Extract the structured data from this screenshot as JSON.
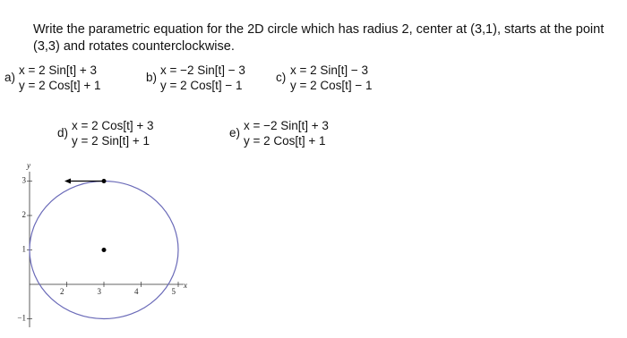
{
  "question": "Write the parametric equation for the 2D circle which has radius 2, center at (3,1), starts at the point (3,3) and rotates counterclockwise.",
  "options": [
    {
      "label": "a)",
      "x": "x = 2 Sin[t] + 3",
      "y": "y = 2 Cos[t] + 1"
    },
    {
      "label": "b)",
      "x": "x = −2 Sin[t] − 3",
      "y": "y = 2 Cos[t] − 1"
    },
    {
      "label": "c)",
      "x": "x = 2 Sin[t] − 3",
      "y": "y = 2 Cos[t] − 1"
    },
    {
      "label": "d)",
      "x": "x = 2 Cos[t] + 3",
      "y": "y = 2 Sin[t] + 1"
    },
    {
      "label": "e)",
      "x": "x = −2 Sin[t] + 3",
      "y": "y = 2 Cos[t] + 1"
    }
  ],
  "figure": {
    "x_label": "x",
    "y_label": "y",
    "xticks": [
      2,
      3,
      4,
      5
    ],
    "yticks": [
      {
        "value": -1,
        "label": "−1"
      },
      1,
      2,
      3
    ],
    "center": [
      3,
      1
    ],
    "radius": 2,
    "start": [
      3,
      3
    ],
    "color": "#6a6ab8"
  }
}
